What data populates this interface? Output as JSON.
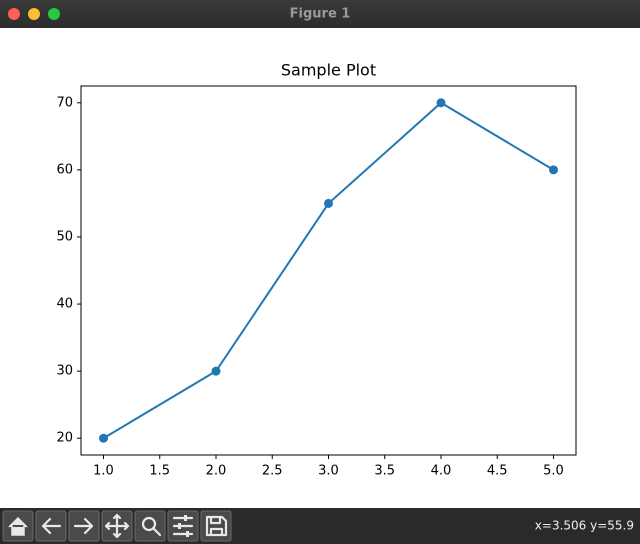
{
  "window": {
    "title": "Figure 1"
  },
  "chart_data": {
    "type": "line",
    "title": "Sample Plot",
    "x": [
      1,
      2,
      3,
      4,
      5
    ],
    "values": [
      20,
      30,
      55,
      70,
      60
    ],
    "color": "#1f77b4",
    "markers": true,
    "xlim": [
      0.8,
      5.2
    ],
    "xticks": [
      {
        "value": 1,
        "label": "1.0"
      },
      {
        "value": 1.5,
        "label": "1.5"
      },
      {
        "value": 2,
        "label": "2.0"
      },
      {
        "value": 2.5,
        "label": "2.5"
      },
      {
        "value": 3,
        "label": "3.0"
      },
      {
        "value": 3.5,
        "label": "3.5"
      },
      {
        "value": 4,
        "label": "4.0"
      },
      {
        "value": 4.5,
        "label": "4.5"
      },
      {
        "value": 5,
        "label": "5.0"
      }
    ],
    "ylim": [
      17.5,
      72.5
    ],
    "yticks": [
      20,
      30,
      40,
      50,
      60,
      70
    ],
    "grid": false
  },
  "toolbar": {
    "status": "x=3.506 y=55.9"
  }
}
